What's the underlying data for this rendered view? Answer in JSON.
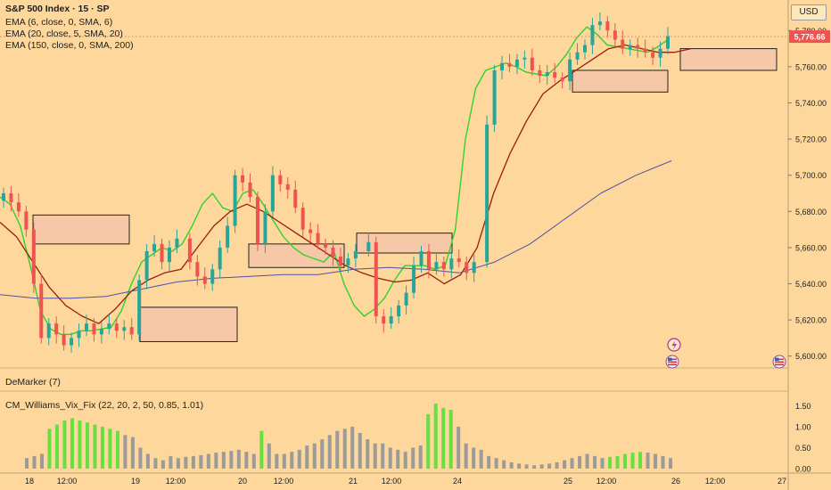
{
  "header": {
    "title": "S&P 500 Index · 15 · SP",
    "indicators": [
      "EMA (6, close, 0, SMA, 6)",
      "EMA (20, close, 5, SMA, 20)",
      "EMA (150, close, 0, SMA, 200)"
    ],
    "currency_button": "USD"
  },
  "panes": {
    "demarker_label": "DeMarker (7)",
    "vixfix_label": "CM_Williams_Vix_Fix (22, 20, 2, 50, 0.85, 1.01)"
  },
  "colors": {
    "background": "#fdd79b",
    "bull_candle": "#26a69a",
    "bear_candle": "#ef5350",
    "ema_fast": "#2fd32f",
    "ema_slow": "#9b1d0a",
    "ema_long": "#5050a8",
    "zone_fill": "#f6c8a8",
    "hist_high": "#66e040",
    "hist_low": "#9b9b9b",
    "price_tag": "#ef5350"
  },
  "icons": [
    "lightning-event-icon",
    "us-flag-icon"
  ],
  "chart_data": [
    {
      "type": "candlestick",
      "title": "S&P 500 Index · 15 · SP",
      "x_tick_labels": [
        "18",
        "12:00",
        "19",
        "12:00",
        "20",
        "12:00",
        "21",
        "12:00",
        "24",
        "25",
        "12:00",
        "26",
        "12:00",
        "27"
      ],
      "y_tick_labels": [
        "5,600.00",
        "5,620.00",
        "5,640.00",
        "5,660.00",
        "5,680.00",
        "5,700.00",
        "5,720.00",
        "5,740.00",
        "5,760.00",
        "5,780.00"
      ],
      "ylim": [
        5590,
        5790
      ],
      "last_price": "5,776.66",
      "grid": false,
      "closes": [
        5690,
        5685,
        5680,
        5670,
        5640,
        5610,
        5618,
        5612,
        5606,
        5610,
        5614,
        5618,
        5612,
        5615,
        5618,
        5614,
        5616,
        5612,
        5642,
        5658,
        5662,
        5652,
        5660,
        5665,
        5652,
        5644,
        5640,
        5648,
        5660,
        5672,
        5700,
        5696,
        5688,
        5662,
        5680,
        5700,
        5695,
        5692,
        5682,
        5670,
        5668,
        5662,
        5660,
        5655,
        5650,
        5654,
        5658,
        5663,
        5622,
        5618,
        5622,
        5628,
        5635,
        5650,
        5658,
        5648,
        5652,
        5648,
        5654,
        5652,
        5646,
        5652,
        5728,
        5758,
        5762,
        5760,
        5764,
        5765,
        5758,
        5755,
        5757,
        5754,
        5752,
        5764,
        5768,
        5772,
        5783,
        5785,
        5780,
        5775,
        5770,
        5772,
        5770,
        5768,
        5765,
        5770,
        5777
      ],
      "series": [
        {
          "name": "EMA (6, close, 0, SMA, 6)",
          "values": [
            5688,
            5684,
            5672,
            5650,
            5625,
            5615,
            5612,
            5612,
            5614,
            5614,
            5615,
            5616,
            5625,
            5640,
            5652,
            5656,
            5660,
            5658,
            5662,
            5672,
            5684,
            5690,
            5682,
            5680,
            5690,
            5692,
            5684,
            5675,
            5666,
            5660,
            5656,
            5654,
            5652,
            5658,
            5640,
            5628,
            5622,
            5626,
            5632,
            5642,
            5650,
            5650,
            5650,
            5648,
            5650,
            5670,
            5720,
            5748,
            5758,
            5760,
            5762,
            5760,
            5757,
            5756,
            5755,
            5760,
            5767,
            5776,
            5782,
            5778,
            5772,
            5771,
            5770,
            5769,
            5768,
            5771,
            5775
          ]
        },
        {
          "name": "EMA (20, close, 5, SMA, 20)",
          "values": [
            5674,
            5666,
            5652,
            5638,
            5628,
            5622,
            5618,
            5626,
            5636,
            5642,
            5646,
            5648,
            5660,
            5672,
            5680,
            5684,
            5680,
            5674,
            5668,
            5662,
            5656,
            5650,
            5646,
            5643,
            5641,
            5642,
            5646,
            5640,
            5645,
            5660,
            5690,
            5712,
            5730,
            5745,
            5752,
            5758,
            5764,
            5770,
            5772,
            5770,
            5768,
            5768,
            5770
          ]
        },
        {
          "name": "EMA (150, close, 0, SMA, 200)",
          "values": [
            5634,
            5632,
            5632,
            5633,
            5637,
            5641,
            5643,
            5644,
            5645,
            5645,
            5648,
            5649,
            5648,
            5646,
            5652,
            5662,
            5676,
            5690,
            5700,
            5708
          ]
        }
      ],
      "zones": [
        {
          "label": "zone-1",
          "top": 5678,
          "bottom": 5662
        },
        {
          "label": "zone-2",
          "top": 5627,
          "bottom": 5608
        },
        {
          "label": "zone-3",
          "top": 5662,
          "bottom": 5649
        },
        {
          "label": "zone-4",
          "top": 5668,
          "bottom": 5657
        },
        {
          "label": "zone-5",
          "top": 5758,
          "bottom": 5746
        },
        {
          "label": "zone-6",
          "top": 5770,
          "bottom": 5758
        }
      ]
    },
    {
      "type": "bar",
      "title": "CM_Williams_Vix_Fix (22, 20, 2, 50, 0.85, 1.01)",
      "y_tick_labels": [
        "0.00",
        "0.50",
        "1.00",
        "1.50"
      ],
      "ylim": [
        0,
        1.7
      ],
      "values": [
        0.25,
        0.3,
        0.35,
        0.95,
        1.05,
        1.15,
        1.2,
        1.15,
        1.1,
        1.05,
        1.0,
        0.95,
        0.9,
        0.8,
        0.75,
        0.5,
        0.35,
        0.25,
        0.2,
        0.3,
        0.25,
        0.28,
        0.3,
        0.32,
        0.35,
        0.38,
        0.4,
        0.42,
        0.45,
        0.4,
        0.35,
        0.9,
        0.6,
        0.35,
        0.35,
        0.4,
        0.45,
        0.55,
        0.6,
        0.7,
        0.8,
        0.9,
        0.95,
        1.0,
        0.85,
        0.7,
        0.6,
        0.6,
        0.5,
        0.45,
        0.4,
        0.5,
        0.55,
        1.3,
        1.55,
        1.45,
        1.4,
        1.0,
        0.6,
        0.5,
        0.45,
        0.3,
        0.25,
        0.2,
        0.15,
        0.12,
        0.1,
        0.08,
        0.1,
        0.12,
        0.15,
        0.2,
        0.25,
        0.3,
        0.35,
        0.3,
        0.25,
        0.28,
        0.3,
        0.35,
        0.38,
        0.4,
        0.38,
        0.35,
        0.3,
        0.25
      ],
      "highlight": [
        false,
        false,
        false,
        true,
        true,
        true,
        true,
        true,
        true,
        true,
        true,
        true,
        true,
        false,
        false,
        false,
        false,
        false,
        false,
        false,
        false,
        false,
        false,
        false,
        false,
        false,
        false,
        false,
        false,
        false,
        false,
        true,
        false,
        false,
        false,
        false,
        false,
        false,
        false,
        false,
        false,
        false,
        false,
        false,
        false,
        false,
        false,
        false,
        false,
        false,
        false,
        false,
        false,
        true,
        true,
        true,
        true,
        false,
        false,
        false,
        false,
        false,
        false,
        false,
        false,
        false,
        false,
        false,
        false,
        false,
        false,
        false,
        false,
        false,
        false,
        false,
        false,
        true,
        true,
        true,
        true,
        true,
        false,
        false,
        false,
        false
      ]
    }
  ]
}
